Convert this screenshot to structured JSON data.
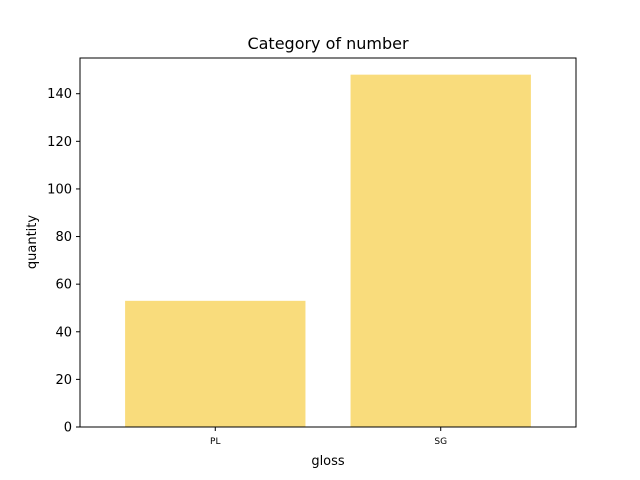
{
  "chart_data": {
    "type": "bar",
    "title": "Category of number",
    "xlabel": "gloss",
    "ylabel": "quantity",
    "categories": [
      "PL",
      "SG"
    ],
    "values": [
      53,
      148
    ],
    "ylim": [
      0,
      155
    ],
    "yticks": [
      0,
      20,
      40,
      60,
      80,
      100,
      120,
      140
    ],
    "bar_color": "#f9dc7c",
    "grid": false,
    "legend": "none"
  }
}
